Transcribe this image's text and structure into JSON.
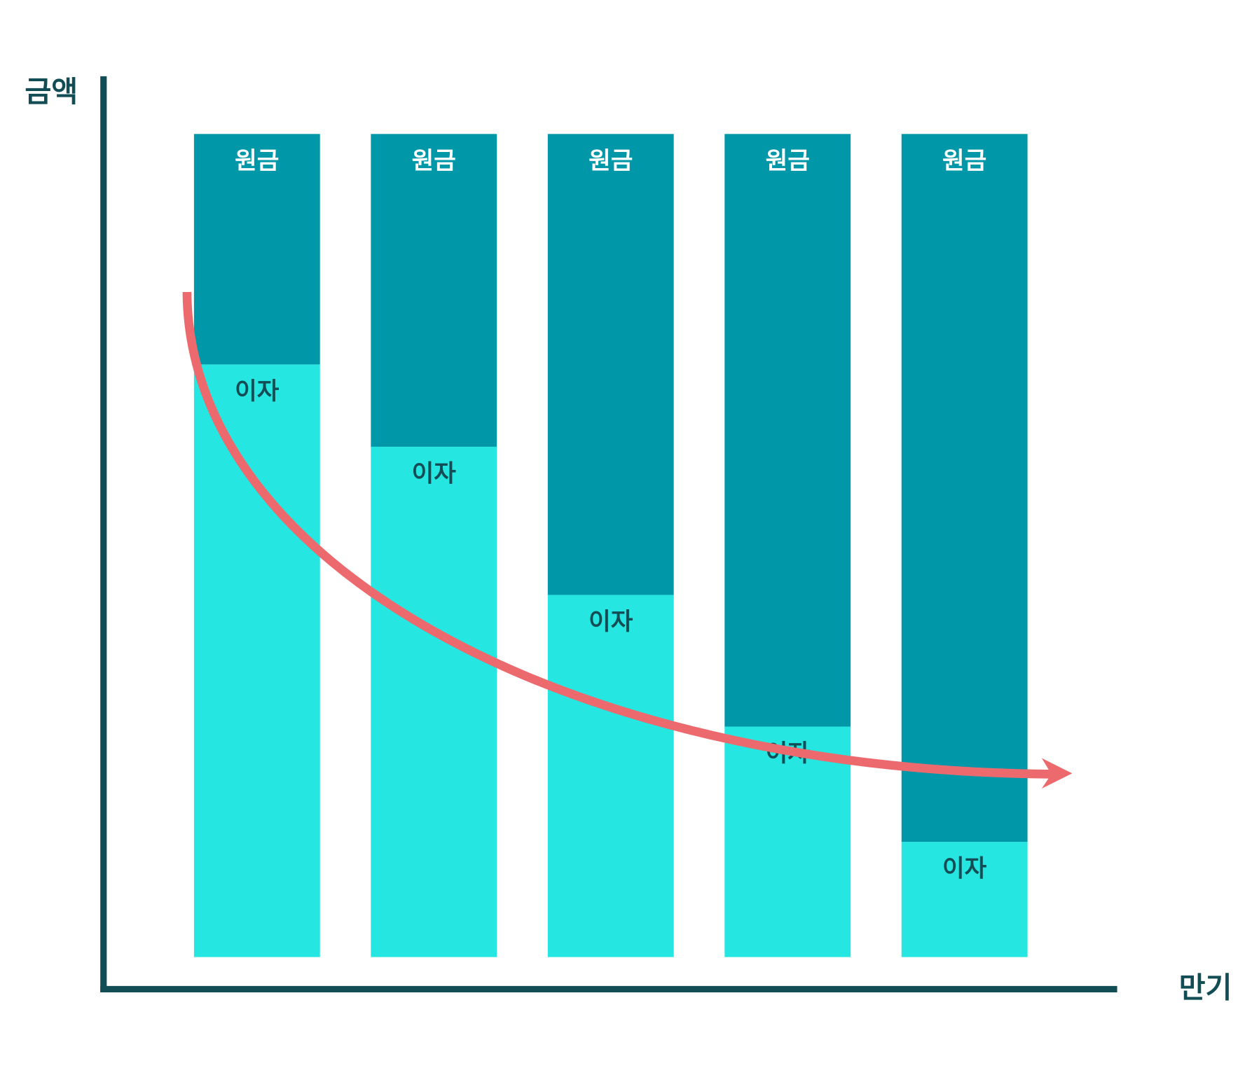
{
  "chart_data": {
    "type": "stacked_bar",
    "categories": [
      null,
      null,
      null,
      null,
      null
    ],
    "series": [
      {
        "name": "이자",
        "color": "#25e6e0",
        "values": [
          72,
          62,
          44,
          28,
          14
        ]
      },
      {
        "name": "원금",
        "color": "#0098a8",
        "values": [
          28,
          38,
          56,
          72,
          86
        ]
      }
    ],
    "ylim": [
      0,
      100
    ],
    "y_label": "금액",
    "x_label": "만기"
  }
}
